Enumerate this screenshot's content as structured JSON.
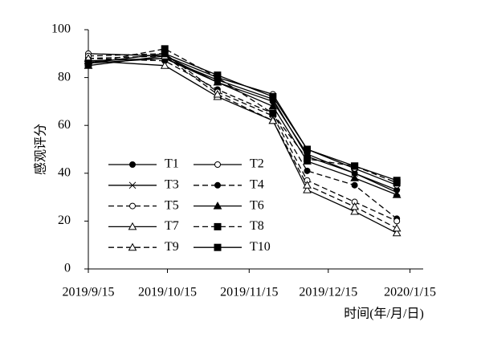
{
  "chart_data": {
    "type": "line",
    "x": [
      "2019/9/15",
      "2019/10/14",
      "2019/11/3",
      "2019/11/24",
      "2019/12/7",
      "2019/12/25",
      "2020/1/10"
    ],
    "xlim": [
      "2019/9/15",
      "2020/1/20"
    ],
    "xticks": [
      "2019/9/15",
      "2019/10/15",
      "2019/11/15",
      "2019/12/15",
      "2020/1/15"
    ],
    "ylim": [
      0,
      100
    ],
    "yticks": [
      0,
      20,
      40,
      60,
      80,
      100
    ],
    "ylabel": "感观评分",
    "xlabel": "时间(年/月/日)",
    "series": [
      {
        "name": "T1",
        "color": "#000000",
        "marker": "circle-filled",
        "dash": false,
        "values": [
          86,
          88,
          78,
          70,
          48,
          40,
          33
        ]
      },
      {
        "name": "T2",
        "color": "#000000",
        "marker": "circle-open",
        "dash": false,
        "values": [
          90,
          89,
          80,
          73,
          50,
          42,
          35
        ]
      },
      {
        "name": "T3",
        "color": "#000000",
        "marker": "x",
        "dash": false,
        "values": [
          87,
          88,
          79,
          71,
          47,
          40,
          32
        ]
      },
      {
        "name": "T4",
        "color": "#000000",
        "marker": "circle-filled",
        "dash": true,
        "values": [
          88,
          87,
          75,
          65,
          41,
          35,
          21
        ]
      },
      {
        "name": "T5",
        "color": "#000000",
        "marker": "circle-open",
        "dash": true,
        "values": [
          89,
          90,
          74,
          64,
          37,
          28,
          20
        ]
      },
      {
        "name": "T6",
        "color": "#000000",
        "marker": "triangle-filled",
        "dash": false,
        "values": [
          85,
          89,
          78,
          68,
          45,
          38,
          31
        ]
      },
      {
        "name": "T7",
        "color": "#000000",
        "marker": "triangle-open",
        "dash": false,
        "values": [
          87,
          85,
          72,
          62,
          33,
          24,
          15
        ]
      },
      {
        "name": "T8",
        "color": "#000000",
        "marker": "square-filled",
        "dash": true,
        "values": [
          86,
          92,
          80,
          65,
          46,
          43,
          36
        ]
      },
      {
        "name": "T9",
        "color": "#000000",
        "marker": "triangle-open",
        "dash": true,
        "values": [
          88,
          89,
          73,
          62,
          35,
          26,
          17
        ]
      },
      {
        "name": "T10",
        "color": "#000000",
        "marker": "square-filled",
        "dash": false,
        "values": [
          86,
          90,
          81,
          72,
          50,
          43,
          37
        ]
      }
    ]
  }
}
